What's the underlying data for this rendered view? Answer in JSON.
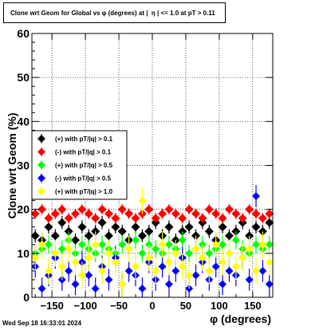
{
  "title": "Clone wrt Geom for Global vs φ (degrees) at |  η | <= 1.0 at pT > 0.11",
  "timestamp": "Wed Sep 18 16:33:01 2024",
  "chart_data": {
    "type": "scatter",
    "title": "Clone wrt Geom for Global vs φ (degrees) at |  η | <= 1.0 at pT > 0.11",
    "xlabel": "φ (degrees)",
    "ylabel": "Clone wrt Geom (%)",
    "xlim": [
      -180,
      180
    ],
    "ylim": [
      0,
      60
    ],
    "x_ticks": [
      -150,
      -100,
      -50,
      0,
      50,
      100,
      150
    ],
    "y_ticks": [
      0,
      10,
      20,
      30,
      40,
      50,
      60
    ],
    "grid": true,
    "legend_position": "middle-left",
    "series": [
      {
        "name": "(+) with pT/|q| > 0.1",
        "color": "#000000",
        "marker": "diamond",
        "x": [
          -175,
          -165,
          -155,
          -145,
          -135,
          -125,
          -115,
          -105,
          -95,
          -85,
          -75,
          -65,
          -55,
          -45,
          -35,
          -25,
          -15,
          -5,
          5,
          15,
          25,
          35,
          45,
          55,
          65,
          75,
          85,
          95,
          105,
          115,
          125,
          135,
          145,
          155,
          165,
          175
        ],
        "y": [
          14,
          13,
          16,
          14,
          17,
          15,
          13,
          16,
          14,
          15,
          17,
          14,
          16,
          15,
          13,
          16,
          14,
          15,
          17,
          14,
          16,
          13,
          15,
          16,
          14,
          17,
          15,
          13,
          16,
          14,
          15,
          17,
          14,
          16,
          15,
          17
        ],
        "err": [
          1.5,
          1.5,
          1.5,
          1.5,
          1.5,
          1.5,
          1.5,
          1.5,
          1.5,
          1.5,
          1.5,
          1.5,
          1.5,
          1.5,
          1.5,
          1.5,
          1.5,
          1.5,
          1.5,
          1.5,
          1.5,
          1.5,
          1.5,
          1.5,
          1.5,
          1.5,
          1.5,
          1.5,
          1.5,
          1.5,
          1.5,
          1.5,
          1.5,
          1.5,
          1.5,
          1.5
        ]
      },
      {
        "name": "(-) with pT/|q| > 0.1",
        "color": "#ff0000",
        "marker": "diamond",
        "x": [
          -175,
          -165,
          -155,
          -145,
          -135,
          -125,
          -115,
          -105,
          -95,
          -85,
          -75,
          -65,
          -55,
          -45,
          -35,
          -25,
          -15,
          -5,
          5,
          15,
          25,
          35,
          45,
          55,
          65,
          75,
          85,
          95,
          105,
          115,
          125,
          135,
          145,
          155,
          165,
          175
        ],
        "y": [
          19,
          20,
          18,
          19,
          20,
          18,
          19,
          20,
          19,
          18,
          20,
          19,
          18,
          20,
          19,
          18,
          19,
          20,
          18,
          19,
          20,
          19,
          18,
          20,
          19,
          18,
          20,
          19,
          18,
          20,
          19,
          18,
          20,
          19,
          18,
          19
        ],
        "err": [
          1.2,
          1.2,
          1.2,
          1.2,
          1.2,
          1.2,
          1.2,
          1.2,
          1.2,
          1.2,
          1.2,
          1.2,
          1.2,
          1.2,
          1.2,
          1.2,
          1.2,
          1.2,
          1.2,
          1.2,
          1.2,
          1.2,
          1.2,
          1.2,
          1.2,
          1.2,
          1.2,
          1.2,
          1.2,
          1.2,
          1.2,
          1.2,
          1.2,
          1.2,
          1.2,
          1.2
        ]
      },
      {
        "name": "(+) with pT/|q| > 0.5",
        "color": "#00ff00",
        "marker": "diamond",
        "x": [
          -175,
          -165,
          -155,
          -145,
          -135,
          -125,
          -115,
          -105,
          -95,
          -85,
          -75,
          -65,
          -55,
          -45,
          -35,
          -25,
          -15,
          -5,
          5,
          15,
          25,
          35,
          45,
          55,
          65,
          75,
          85,
          95,
          105,
          115,
          125,
          135,
          145,
          155,
          165,
          175
        ],
        "y": [
          10,
          11,
          12,
          10,
          11,
          13,
          10,
          12,
          11,
          10,
          12,
          11,
          10,
          12,
          11,
          13,
          10,
          12,
          11,
          10,
          12,
          11,
          13,
          10,
          11,
          12,
          10,
          11,
          12,
          10,
          13,
          11,
          10,
          12,
          11,
          12
        ],
        "err": [
          2,
          2,
          2,
          2,
          2,
          2,
          2,
          2,
          2,
          2,
          2,
          2,
          2,
          2,
          2,
          2,
          2,
          2,
          2,
          2,
          2,
          2,
          2,
          2,
          2,
          2,
          2,
          2,
          2,
          2,
          2,
          2,
          2,
          2,
          2,
          2
        ]
      },
      {
        "name": "(-) with pT/|q| > 0.5",
        "color": "#0000ff",
        "marker": "diamond",
        "x": [
          -175,
          -165,
          -155,
          -145,
          -135,
          -125,
          -115,
          -105,
          -95,
          -85,
          -75,
          -65,
          -55,
          -45,
          -35,
          -25,
          -15,
          -5,
          5,
          15,
          25,
          35,
          45,
          55,
          65,
          75,
          85,
          95,
          105,
          115,
          125,
          135,
          145,
          155,
          165,
          175
        ],
        "y": [
          7,
          2,
          5,
          9,
          4,
          6,
          3,
          8,
          5,
          2,
          7,
          4,
          9,
          3,
          6,
          5,
          2,
          8,
          4,
          7,
          3,
          6,
          9,
          2,
          5,
          8,
          4,
          7,
          3,
          6,
          5,
          9,
          4,
          23,
          6,
          3
        ],
        "err": [
          2.5,
          2.5,
          2.5,
          2.5,
          2.5,
          2.5,
          2.5,
          2.5,
          2.5,
          2.5,
          2.5,
          2.5,
          2.5,
          2.5,
          2.5,
          2.5,
          2.5,
          2.5,
          2.5,
          2.5,
          2.5,
          2.5,
          2.5,
          2.5,
          2.5,
          2.5,
          2.5,
          2.5,
          2.5,
          2.5,
          2.5,
          2.5,
          2.5,
          2.5,
          2.5,
          2.5
        ]
      },
      {
        "name": "(+) with pT/|q| > 1.0",
        "color": "#ffff00",
        "marker": "diamond",
        "x": [
          -175,
          -165,
          -155,
          -145,
          -135,
          -125,
          -115,
          -105,
          -95,
          -85,
          -75,
          -65,
          -55,
          -45,
          -35,
          -25,
          -15,
          -5,
          5,
          15,
          25,
          35,
          45,
          55,
          65,
          75,
          85,
          95,
          105,
          115,
          125,
          135,
          145,
          155,
          165,
          175
        ],
        "y": [
          9,
          12,
          6,
          10,
          7,
          11,
          8,
          5,
          9,
          12,
          6,
          10,
          8,
          3,
          11,
          7,
          22,
          9,
          6,
          12,
          8,
          10,
          7,
          5,
          11,
          9,
          6,
          12,
          8,
          10,
          7,
          9,
          11,
          6,
          12,
          8
        ],
        "err": [
          3,
          3,
          3,
          3,
          3,
          3,
          3,
          3,
          3,
          3,
          3,
          3,
          3,
          3,
          3,
          3,
          3,
          3,
          3,
          3,
          3,
          3,
          3,
          3,
          3,
          3,
          3,
          3,
          3,
          3,
          3,
          3,
          3,
          3,
          3,
          3
        ]
      }
    ]
  }
}
